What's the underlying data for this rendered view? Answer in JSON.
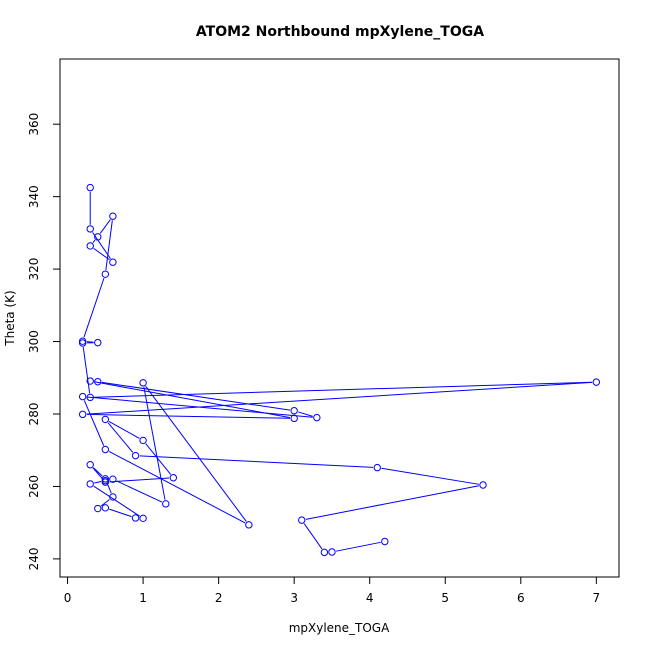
{
  "chart_data": {
    "type": "line",
    "title": "ATOM2 Northbound mpXylene_TOGA",
    "xlabel": "mpXylene_TOGA",
    "ylabel": "Theta (K)",
    "xlim": [
      -0.1,
      7.3
    ],
    "ylim": [
      235,
      378
    ],
    "xticks": [
      0,
      1,
      2,
      3,
      4,
      5,
      6,
      7
    ],
    "yticks": [
      240,
      260,
      280,
      300,
      320,
      340,
      360
    ],
    "marker": "open-circle",
    "color": "#0000ff",
    "grid": false,
    "series": [
      {
        "x": [
          4.2,
          3.5,
          3.4,
          3.1,
          5.5,
          4.1,
          0.9,
          0.5,
          1.0,
          1.4,
          0.5,
          0.3,
          0.5,
          0.6,
          0.4,
          0.5,
          0.9,
          1.0,
          0.3,
          0.5,
          0.6,
          1.3,
          1.0,
          2.4,
          0.5,
          0.2,
          3.3,
          3.0,
          0.4,
          0.3,
          3.0,
          0.2,
          7.0,
          0.3,
          0.2,
          0.4,
          0.2,
          0.5,
          0.6,
          0.4,
          0.3,
          0.6,
          0.3,
          0.3
        ],
        "y": [
          244.8,
          241.9,
          241.8,
          250.7,
          260.4,
          265.2,
          268.5,
          278.5,
          272.7,
          262.4,
          261.2,
          266.0,
          262.1,
          257.1,
          253.9,
          254.1,
          251.3,
          251.2,
          260.7,
          261.6,
          262.0,
          255.2,
          288.6,
          249.4,
          270.2,
          284.8,
          279.0,
          280.9,
          288.9,
          289.1,
          278.8,
          279.9,
          288.8,
          284.6,
          299.6,
          299.7,
          300.1,
          318.6,
          334.6,
          328.9,
          326.4,
          321.9,
          331.1,
          342.5
        ]
      }
    ]
  }
}
